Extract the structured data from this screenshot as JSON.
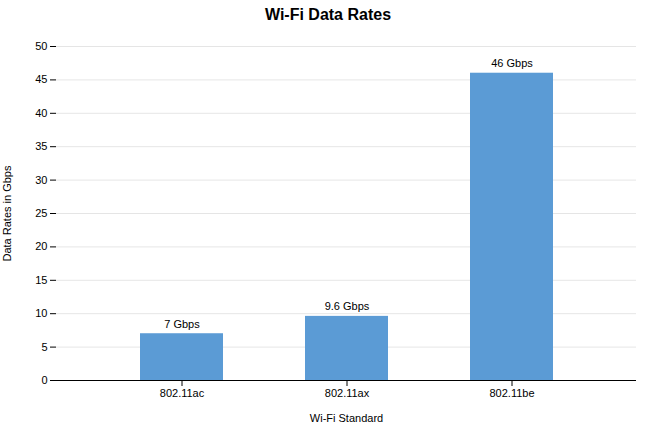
{
  "chart_data": {
    "type": "bar",
    "title": "Wi-Fi Data Rates",
    "categories": [
      "802.11ac",
      "802.11ax",
      "802.11be"
    ],
    "values": [
      7,
      9.6,
      46
    ],
    "value_labels": [
      "7 Gbps",
      "9.6 Gbps",
      "46 Gbps"
    ],
    "data_labels": true,
    "color": "#5B9BD5",
    "xlabel": "Wi-Fi Standard",
    "ylabel": "Data Rates in Gbps",
    "ylim": [
      0,
      50
    ],
    "yticks": [
      0,
      5,
      10,
      15,
      20,
      25,
      30,
      35,
      40,
      45,
      50
    ],
    "grid": true
  }
}
